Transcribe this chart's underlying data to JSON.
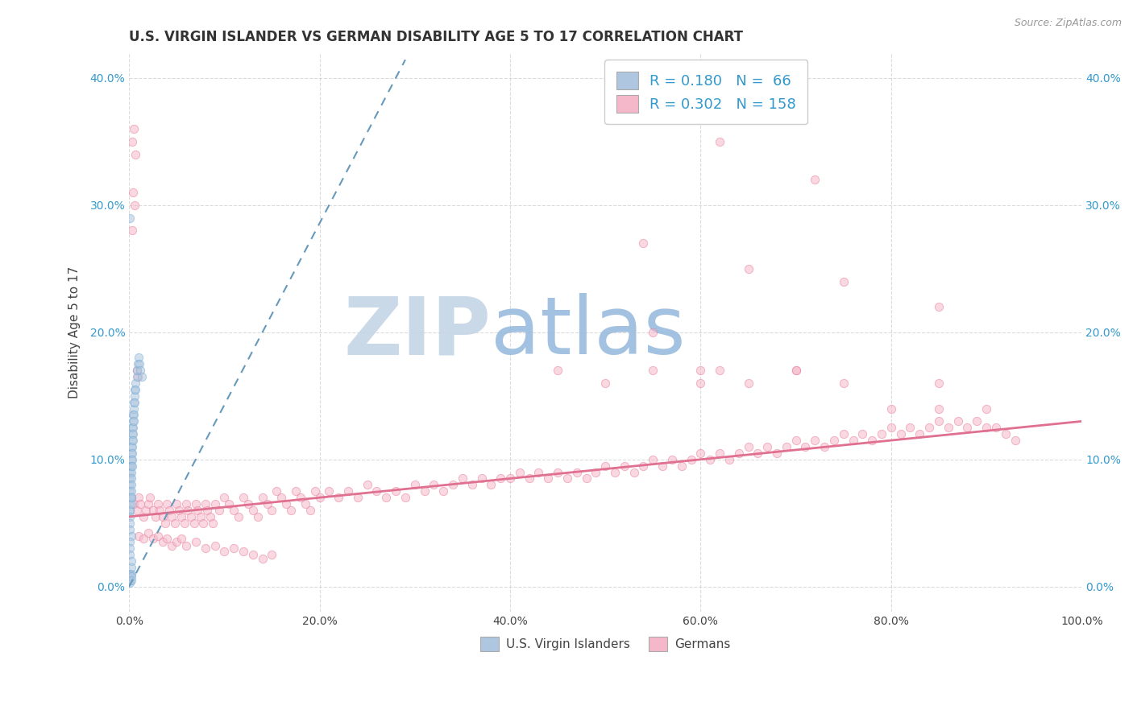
{
  "title": "U.S. VIRGIN ISLANDER VS GERMAN DISABILITY AGE 5 TO 17 CORRELATION CHART",
  "source_text": "Source: ZipAtlas.com",
  "ylabel": "Disability Age 5 to 17",
  "xlim": [
    0.0,
    1.0
  ],
  "ylim": [
    -0.02,
    0.42
  ],
  "xticks": [
    0.0,
    0.2,
    0.4,
    0.6,
    0.8,
    1.0
  ],
  "yticks": [
    0.0,
    0.1,
    0.2,
    0.3,
    0.4
  ],
  "ytick_labels": [
    "0.0%",
    "10.0%",
    "20.0%",
    "30.0%",
    "40.0%"
  ],
  "xtick_labels": [
    "0.0%",
    "20.0%",
    "40.0%",
    "60.0%",
    "80.0%",
    "100.0%"
  ],
  "virgin_islander_color": "#aec6df",
  "german_color": "#f5b8cb",
  "virgin_islander_edge": "#7aadd4",
  "german_edge": "#e8809a",
  "legend_blue_color": "#aec6df",
  "legend_pink_color": "#f5b8cb",
  "legend_text_color": "#3399cc",
  "R_vi": 0.18,
  "N_vi": 66,
  "R_de": 0.302,
  "N_de": 158,
  "trend_vi_color": "#6699bb",
  "trend_de_color": "#e07090",
  "watermark_zip": "ZIP",
  "watermark_atlas": "atlas",
  "watermark_color_zip": "#c5d5e5",
  "watermark_color_atlas": "#99bbdd",
  "background_color": "#ffffff",
  "grid_color": "#cccccc",
  "title_fontsize": 12,
  "axis_label_fontsize": 11,
  "tick_fontsize": 10,
  "legend_fontsize": 13,
  "scatter_size": 55,
  "scatter_alpha": 0.55,
  "vi_x": [
    0.001,
    0.001,
    0.001,
    0.001,
    0.001,
    0.001,
    0.001,
    0.001,
    0.002,
    0.002,
    0.002,
    0.002,
    0.002,
    0.002,
    0.002,
    0.002,
    0.002,
    0.003,
    0.003,
    0.003,
    0.003,
    0.003,
    0.003,
    0.003,
    0.004,
    0.004,
    0.004,
    0.004,
    0.004,
    0.005,
    0.005,
    0.005,
    0.005,
    0.006,
    0.006,
    0.006,
    0.007,
    0.007,
    0.008,
    0.008,
    0.009,
    0.01,
    0.011,
    0.012,
    0.013,
    0.001,
    0.002,
    0.002,
    0.001,
    0.001,
    0.001,
    0.002,
    0.001,
    0.001,
    0.001,
    0.001,
    0.001,
    0.001,
    0.001,
    0.001,
    0.001,
    0.002,
    0.002,
    0.002,
    0.002,
    0.002
  ],
  "vi_y": [
    0.08,
    0.09,
    0.095,
    0.085,
    0.075,
    0.07,
    0.065,
    0.06,
    0.1,
    0.105,
    0.11,
    0.095,
    0.09,
    0.085,
    0.08,
    0.075,
    0.07,
    0.12,
    0.115,
    0.125,
    0.11,
    0.105,
    0.1,
    0.095,
    0.13,
    0.135,
    0.125,
    0.12,
    0.115,
    0.14,
    0.145,
    0.135,
    0.13,
    0.15,
    0.155,
    0.145,
    0.16,
    0.155,
    0.165,
    0.17,
    0.175,
    0.18,
    0.175,
    0.17,
    0.165,
    0.06,
    0.065,
    0.07,
    0.055,
    0.05,
    0.045,
    0.04,
    0.035,
    0.03,
    0.025,
    0.01,
    0.01,
    0.005,
    0.005,
    0.003,
    0.29,
    0.02,
    0.01,
    0.015,
    0.008,
    0.005
  ],
  "de_x": [
    0.005,
    0.008,
    0.01,
    0.012,
    0.015,
    0.018,
    0.02,
    0.022,
    0.025,
    0.028,
    0.03,
    0.032,
    0.035,
    0.038,
    0.04,
    0.042,
    0.045,
    0.048,
    0.05,
    0.052,
    0.055,
    0.058,
    0.06,
    0.062,
    0.065,
    0.068,
    0.07,
    0.072,
    0.075,
    0.078,
    0.08,
    0.082,
    0.085,
    0.088,
    0.09,
    0.095,
    0.1,
    0.105,
    0.11,
    0.115,
    0.12,
    0.125,
    0.13,
    0.135,
    0.14,
    0.145,
    0.15,
    0.155,
    0.16,
    0.165,
    0.17,
    0.175,
    0.18,
    0.185,
    0.19,
    0.195,
    0.2,
    0.21,
    0.22,
    0.23,
    0.24,
    0.25,
    0.26,
    0.27,
    0.28,
    0.29,
    0.3,
    0.31,
    0.32,
    0.33,
    0.34,
    0.35,
    0.36,
    0.37,
    0.38,
    0.39,
    0.4,
    0.41,
    0.42,
    0.43,
    0.44,
    0.45,
    0.46,
    0.47,
    0.48,
    0.49,
    0.5,
    0.51,
    0.52,
    0.53,
    0.54,
    0.55,
    0.56,
    0.57,
    0.58,
    0.59,
    0.6,
    0.61,
    0.62,
    0.63,
    0.64,
    0.65,
    0.66,
    0.67,
    0.68,
    0.69,
    0.7,
    0.71,
    0.72,
    0.73,
    0.74,
    0.75,
    0.76,
    0.77,
    0.78,
    0.79,
    0.8,
    0.81,
    0.82,
    0.83,
    0.84,
    0.85,
    0.86,
    0.87,
    0.88,
    0.89,
    0.9,
    0.91,
    0.92,
    0.93,
    0.01,
    0.015,
    0.02,
    0.025,
    0.03,
    0.035,
    0.04,
    0.045,
    0.05,
    0.055,
    0.06,
    0.07,
    0.08,
    0.09,
    0.1,
    0.11,
    0.12,
    0.13,
    0.14,
    0.15,
    0.003,
    0.005,
    0.007,
    0.003,
    0.004,
    0.006,
    0.008,
    0.009
  ],
  "de_y": [
    0.065,
    0.06,
    0.07,
    0.065,
    0.055,
    0.06,
    0.065,
    0.07,
    0.06,
    0.055,
    0.065,
    0.06,
    0.055,
    0.05,
    0.065,
    0.06,
    0.055,
    0.05,
    0.065,
    0.06,
    0.055,
    0.05,
    0.065,
    0.06,
    0.055,
    0.05,
    0.065,
    0.06,
    0.055,
    0.05,
    0.065,
    0.06,
    0.055,
    0.05,
    0.065,
    0.06,
    0.07,
    0.065,
    0.06,
    0.055,
    0.07,
    0.065,
    0.06,
    0.055,
    0.07,
    0.065,
    0.06,
    0.075,
    0.07,
    0.065,
    0.06,
    0.075,
    0.07,
    0.065,
    0.06,
    0.075,
    0.07,
    0.075,
    0.07,
    0.075,
    0.07,
    0.08,
    0.075,
    0.07,
    0.075,
    0.07,
    0.08,
    0.075,
    0.08,
    0.075,
    0.08,
    0.085,
    0.08,
    0.085,
    0.08,
    0.085,
    0.085,
    0.09,
    0.085,
    0.09,
    0.085,
    0.09,
    0.085,
    0.09,
    0.085,
    0.09,
    0.095,
    0.09,
    0.095,
    0.09,
    0.095,
    0.1,
    0.095,
    0.1,
    0.095,
    0.1,
    0.105,
    0.1,
    0.105,
    0.1,
    0.105,
    0.11,
    0.105,
    0.11,
    0.105,
    0.11,
    0.115,
    0.11,
    0.115,
    0.11,
    0.115,
    0.12,
    0.115,
    0.12,
    0.115,
    0.12,
    0.125,
    0.12,
    0.125,
    0.12,
    0.125,
    0.13,
    0.125,
    0.13,
    0.125,
    0.13,
    0.125,
    0.125,
    0.12,
    0.115,
    0.04,
    0.038,
    0.042,
    0.038,
    0.04,
    0.035,
    0.038,
    0.032,
    0.035,
    0.038,
    0.032,
    0.035,
    0.03,
    0.032,
    0.028,
    0.03,
    0.028,
    0.025,
    0.022,
    0.025,
    0.35,
    0.36,
    0.34,
    0.28,
    0.31,
    0.3,
    0.17,
    0.165
  ],
  "de_outliers_x": [
    0.62,
    0.72,
    0.54,
    0.65,
    0.75,
    0.85,
    0.55,
    0.62,
    0.75,
    0.85
  ],
  "de_outliers_y": [
    0.35,
    0.32,
    0.27,
    0.25,
    0.24,
    0.22,
    0.17,
    0.17,
    0.16,
    0.16
  ],
  "de_mid_x": [
    0.45,
    0.55,
    0.6,
    0.65,
    0.7,
    0.5,
    0.6,
    0.7,
    0.8,
    0.85,
    0.9
  ],
  "de_mid_y": [
    0.17,
    0.2,
    0.17,
    0.16,
    0.17,
    0.16,
    0.16,
    0.17,
    0.14,
    0.14,
    0.14
  ]
}
